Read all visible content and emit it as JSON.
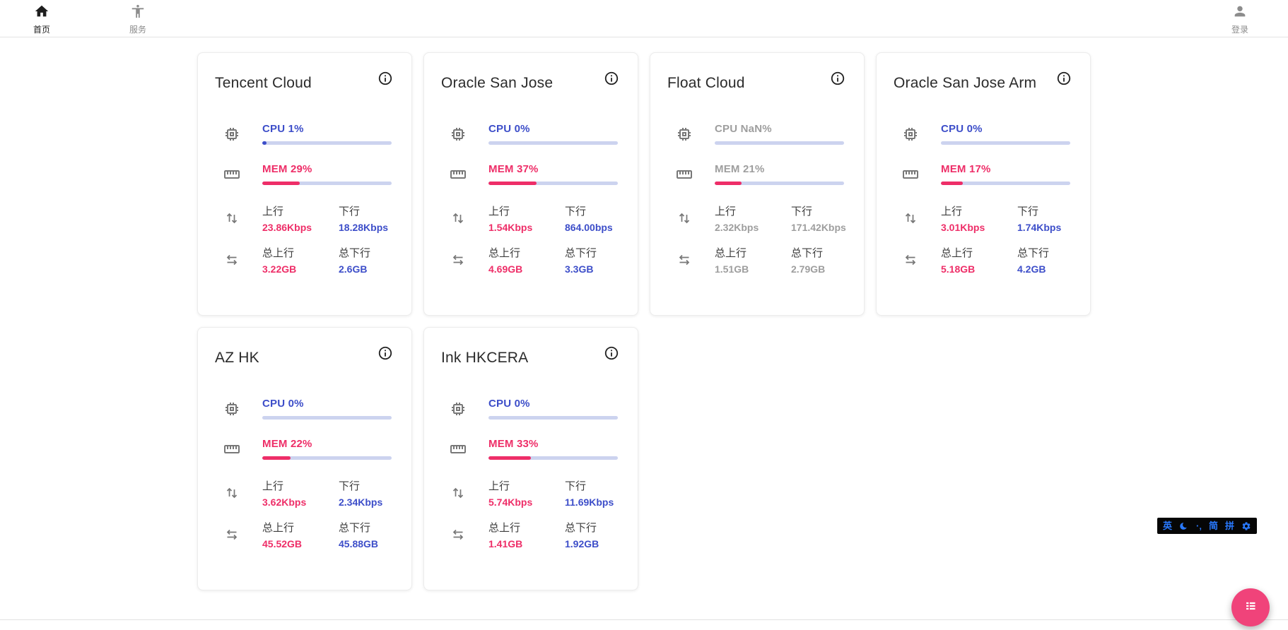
{
  "nav": {
    "items": [
      {
        "label": "首页",
        "icon": "home-icon",
        "active": true
      },
      {
        "label": "服务",
        "icon": "accessibility-icon",
        "active": false
      }
    ],
    "login": {
      "label": "登录",
      "icon": "account-icon"
    }
  },
  "labels": {
    "upload": "上行",
    "download": "下行",
    "total_upload": "总上行",
    "total_download": "总下行"
  },
  "servers": [
    {
      "name": "Tencent Cloud",
      "cpu_text": "CPU 1%",
      "cpu_percent": 1,
      "mem_text": "MEM 29%",
      "mem_percent": 29,
      "upload": "23.86Kbps",
      "download": "18.28Kbps",
      "total_upload": "3.22GB",
      "total_download": "2.6GB",
      "offline": false
    },
    {
      "name": "Oracle San Jose",
      "cpu_text": "CPU 0%",
      "cpu_percent": 0,
      "mem_text": "MEM 37%",
      "mem_percent": 37,
      "upload": "1.54Kbps",
      "download": "864.00bps",
      "total_upload": "4.69GB",
      "total_download": "3.3GB",
      "offline": false
    },
    {
      "name": "Float Cloud",
      "cpu_text": "CPU NaN%",
      "cpu_percent": null,
      "mem_text": "MEM 21%",
      "mem_percent": 21,
      "upload": "2.32Kbps",
      "download": "171.42Kbps",
      "total_upload": "1.51GB",
      "total_download": "2.79GB",
      "offline": true
    },
    {
      "name": "Oracle San Jose Arm",
      "cpu_text": "CPU 0%",
      "cpu_percent": 0,
      "mem_text": "MEM 17%",
      "mem_percent": 17,
      "upload": "3.01Kbps",
      "download": "1.74Kbps",
      "total_upload": "5.18GB",
      "total_download": "4.2GB",
      "offline": false
    },
    {
      "name": "AZ HK",
      "cpu_text": "CPU 0%",
      "cpu_percent": 0,
      "mem_text": "MEM 22%",
      "mem_percent": 22,
      "upload": "3.62Kbps",
      "download": "2.34Kbps",
      "total_upload": "45.52GB",
      "total_download": "45.88GB",
      "offline": false
    },
    {
      "name": "Ink HKCERA",
      "cpu_text": "CPU 0%",
      "cpu_percent": 0,
      "mem_text": "MEM 33%",
      "mem_percent": 33,
      "upload": "5.74Kbps",
      "download": "11.69Kbps",
      "total_upload": "1.41GB",
      "total_download": "1.92GB",
      "offline": false
    }
  ],
  "ime": {
    "english": "英",
    "punctuation": "·‚",
    "simplified": "简",
    "pinyin": "拼"
  },
  "colors": {
    "accent_blue": "#3d4ec9",
    "accent_pink": "#ee2e68",
    "bar_track": "#ccd3ef",
    "offline_gray": "#9e9e9e",
    "fab_pink": "#f0437a",
    "ime_blue": "#2979ff"
  }
}
